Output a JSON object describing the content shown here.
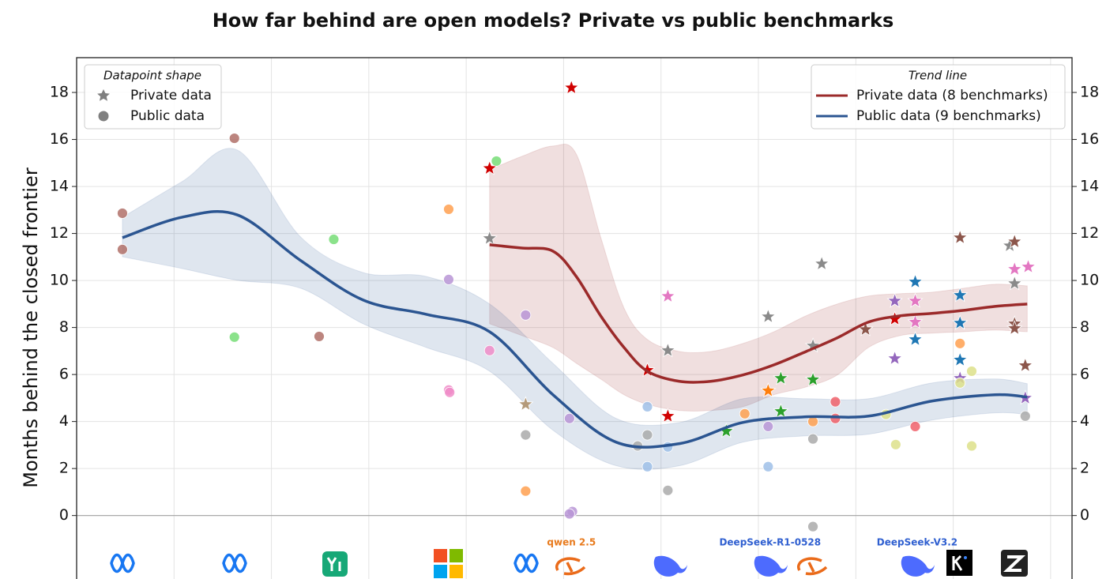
{
  "chart_data": {
    "type": "scatter-trend",
    "title": "How far behind are open models? Private vs public benchmarks",
    "y_label": "Months behind the closed frontier",
    "xlim": [
      0,
      10.22
    ],
    "xticks": [
      1,
      2,
      3,
      4,
      5,
      6,
      7,
      8,
      9,
      10
    ],
    "ylim": [
      -2.7,
      19.48
    ],
    "yticks": [
      0,
      2,
      4,
      6,
      8,
      10,
      12,
      14,
      16,
      18
    ],
    "reference_line": 0,
    "grid": true,
    "shape_legend": {
      "title": "Datapoint shape",
      "loc": "upper left"
    },
    "trend_legend": {
      "title": "Trend line",
      "loc": "upper right"
    },
    "points": [
      {
        "name": "Private data",
        "marker": "star",
        "x": [
          4.24,
          4.24,
          5.08,
          4.61,
          5.86,
          6.07,
          6.07,
          6.07,
          6.67,
          7.1,
          7.1,
          7.23,
          7.23,
          7.56,
          7.56,
          7.65,
          8.1,
          8.4,
          8.4,
          8.4,
          8.61,
          8.61,
          8.61,
          8.61,
          9.07,
          9.07,
          9.07,
          9.07,
          9.07,
          9.58,
          9.63,
          9.63,
          9.63,
          9.77,
          9.63,
          9.63,
          9.74,
          9.74
        ],
        "y": [
          11.79,
          14.77,
          18.2,
          4.73,
          6.18,
          9.33,
          7.02,
          4.23,
          3.59,
          8.46,
          5.31,
          5.84,
          4.43,
          5.78,
          7.22,
          10.71,
          7.92,
          9.13,
          8.36,
          6.68,
          9.94,
          9.13,
          8.23,
          7.49,
          11.82,
          9.37,
          8.19,
          6.62,
          5.84,
          11.48,
          11.65,
          9.87,
          10.48,
          10.58,
          8.16,
          7.96,
          6.38,
          5.0
        ],
        "colors": [
          "#8a8a8a",
          "#d00000",
          "#d00000",
          "#b49a7a",
          "#d00000",
          "#e377c2",
          "#8a8a8a",
          "#d00000",
          "#2ca02c",
          "#8a8a8a",
          "#ff7f0e",
          "#2ca02c",
          "#2ca02c",
          "#2ca02c",
          "#8a8a8a",
          "#8a8a8a",
          "#8c564b",
          "#9467bd",
          "#d00000",
          "#9467bd",
          "#1f77b4",
          "#e377c2",
          "#e377c2",
          "#1f77b4",
          "#8c564b",
          "#1f77b4",
          "#1f77b4",
          "#1f77b4",
          "#9467bd",
          "#8a8a8a",
          "#8c564b",
          "#8a8a8a",
          "#e377c2",
          "#e377c2",
          "#8c564b",
          "#8c564b",
          "#8c564b",
          "#9467bd"
        ]
      },
      {
        "name": "Public data",
        "marker": "circle",
        "x": [
          0.47,
          0.47,
          1.62,
          1.62,
          2.49,
          2.64,
          3.82,
          3.82,
          3.82,
          3.83,
          4.24,
          4.31,
          4.61,
          4.61,
          4.61,
          5.06,
          5.09,
          5.06,
          5.76,
          5.86,
          5.86,
          5.86,
          6.07,
          6.07,
          6.86,
          7.1,
          7.1,
          7.56,
          7.56,
          7.56,
          7.79,
          7.79,
          8.31,
          8.41,
          8.61,
          9.07,
          9.07,
          9.19,
          9.19,
          9.74
        ],
        "y": [
          12.86,
          11.32,
          16.05,
          7.59,
          7.62,
          11.75,
          13.03,
          10.04,
          5.34,
          5.24,
          7.02,
          15.08,
          8.53,
          3.43,
          1.04,
          4.13,
          0.17,
          0.07,
          2.96,
          4.63,
          3.43,
          2.08,
          2.92,
          1.07,
          4.33,
          3.79,
          2.08,
          4.0,
          3.26,
          -0.47,
          4.84,
          4.13,
          4.3,
          3.02,
          3.79,
          7.32,
          5.64,
          6.14,
          2.96,
          4.23
        ],
        "colors": [
          "#b07068",
          "#b07068",
          "#b07068",
          "#77dd77",
          "#b07068",
          "#77dd77",
          "#ffa050",
          "#b995d6",
          "#f08cc8",
          "#f08cc8",
          "#f08cc8",
          "#77dd77",
          "#b995d6",
          "#aaaaaa",
          "#ffa050",
          "#b995d6",
          "#b995d6",
          "#b995d6",
          "#aaaaaa",
          "#9fbfe8",
          "#aaaaaa",
          "#9fbfe8",
          "#9fbfe8",
          "#aaaaaa",
          "#ffa050",
          "#b995d6",
          "#9fbfe8",
          "#ffa050",
          "#aaaaaa",
          "#aaaaaa",
          "#f0606a",
          "#f0606a",
          "#dde08a",
          "#dde08a",
          "#f0606a",
          "#ffa050",
          "#dde08a",
          "#dde08a",
          "#dde08a",
          "#aaaaaa"
        ]
      }
    ],
    "series": [
      {
        "name": "Private data (8 benchmarks)",
        "color": "#9b2a2a",
        "x": [
          4.24,
          4.57,
          4.89,
          5.13,
          5.38,
          5.62,
          5.86,
          6.19,
          6.51,
          6.84,
          7.16,
          7.49,
          7.81,
          8.13,
          8.46,
          8.78,
          9.11,
          9.43,
          9.76
        ],
        "values": [
          11.52,
          11.38,
          11.25,
          10.17,
          8.5,
          7.15,
          6.14,
          5.71,
          5.71,
          5.98,
          6.41,
          6.98,
          7.56,
          8.23,
          8.5,
          8.6,
          8.73,
          8.9,
          9.0
        ],
        "upper": [
          14.71,
          15.28,
          15.72,
          15.38,
          11.85,
          8.83,
          7.49,
          6.98,
          6.98,
          7.32,
          7.82,
          8.5,
          9.0,
          9.34,
          9.44,
          9.5,
          9.67,
          9.84,
          9.77
        ],
        "lower": [
          8.16,
          7.66,
          7.15,
          6.48,
          5.81,
          5.14,
          4.73,
          4.47,
          4.47,
          4.63,
          5.14,
          5.47,
          5.98,
          7.15,
          7.66,
          7.76,
          7.82,
          7.89,
          7.82
        ]
      },
      {
        "name": "Public data (9 benchmarks)",
        "color": "#2b5591",
        "x": [
          0.47,
          1.08,
          1.65,
          2.3,
          2.94,
          3.59,
          4.24,
          4.89,
          5.54,
          6.19,
          6.84,
          7.49,
          8.13,
          8.78,
          9.43,
          9.76
        ],
        "values": [
          11.82,
          12.69,
          12.79,
          10.85,
          9.17,
          8.56,
          7.82,
          5.14,
          3.12,
          3.06,
          3.96,
          4.2,
          4.23,
          4.87,
          5.14,
          5.04
        ],
        "upper": [
          12.69,
          14.2,
          15.55,
          11.85,
          10.34,
          10.17,
          9.0,
          6.48,
          4.13,
          3.96,
          4.97,
          4.97,
          4.97,
          5.64,
          5.81,
          5.61
        ],
        "lower": [
          11.01,
          10.51,
          10.01,
          9.67,
          8.16,
          7.15,
          6.14,
          3.63,
          2.12,
          2.12,
          3.12,
          3.39,
          3.46,
          4.06,
          4.37,
          4.3
        ]
      }
    ],
    "annotations": [
      {
        "text": "qwen 2.5",
        "x": 5.08,
        "color": "#e87a1c"
      },
      {
        "text": "DeepSeek-R1-0528",
        "x": 7.12,
        "color": "#2f5fd0"
      },
      {
        "text": "DeepSeek-V3.2",
        "x": 8.63,
        "color": "#2f5fd0"
      }
    ]
  }
}
